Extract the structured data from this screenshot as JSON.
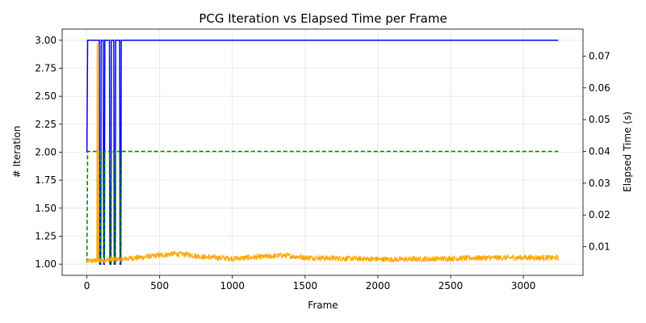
{
  "chart_data": {
    "type": "line",
    "title": "PCG Iteration vs Elapsed Time per Frame",
    "xlabel": "Frame",
    "ylabel": "# Iteration",
    "y2label": "Elapsed Time (s)",
    "xlim": [
      -170,
      3410
    ],
    "ylim": [
      0.9,
      3.1
    ],
    "y2lim": [
      0.001,
      0.0785
    ],
    "xticks": [
      0,
      500,
      1000,
      1500,
      2000,
      2500,
      3000
    ],
    "xtick_labels": [
      "0",
      "500",
      "1000",
      "1500",
      "2000",
      "2500",
      "3000"
    ],
    "yticks": [
      1.0,
      1.25,
      1.5,
      1.75,
      2.0,
      2.25,
      2.5,
      2.75,
      3.0
    ],
    "ytick_labels": [
      "1.00",
      "1.25",
      "1.50",
      "1.75",
      "2.00",
      "2.25",
      "2.50",
      "2.75",
      "3.00"
    ],
    "y2ticks": [
      0.01,
      0.02,
      0.03,
      0.04,
      0.05,
      0.06,
      0.07
    ],
    "y2tick_labels": [
      "0.01",
      "0.02",
      "0.03",
      "0.04",
      "0.05",
      "0.06",
      "0.07"
    ],
    "grid": true,
    "series": [
      {
        "color": "#0000ff",
        "style": "solid",
        "axis": "left",
        "steps": [
          [
            0,
            2
          ],
          [
            5,
            3
          ],
          [
            85,
            3
          ],
          [
            88,
            1
          ],
          [
            95,
            1
          ],
          [
            98,
            3
          ],
          [
            112,
            3
          ],
          [
            115,
            1
          ],
          [
            120,
            1
          ],
          [
            123,
            3
          ],
          [
            155,
            3
          ],
          [
            158,
            1
          ],
          [
            165,
            1
          ],
          [
            168,
            3
          ],
          [
            185,
            3
          ],
          [
            188,
            1
          ],
          [
            195,
            1
          ],
          [
            198,
            3
          ],
          [
            225,
            3
          ],
          [
            228,
            1
          ],
          [
            233,
            1
          ],
          [
            236,
            3
          ],
          [
            3240,
            3
          ]
        ]
      },
      {
        "color": "#008000",
        "style": "dashed",
        "axis": "right",
        "steps": [
          [
            0,
            0.005
          ],
          [
            5,
            0.04
          ],
          [
            85,
            0.04
          ],
          [
            88,
            0.005
          ],
          [
            95,
            0.005
          ],
          [
            98,
            0.04
          ],
          [
            112,
            0.04
          ],
          [
            115,
            0.005
          ],
          [
            120,
            0.005
          ],
          [
            123,
            0.04
          ],
          [
            155,
            0.04
          ],
          [
            158,
            0.005
          ],
          [
            165,
            0.005
          ],
          [
            168,
            0.04
          ],
          [
            185,
            0.04
          ],
          [
            188,
            0.005
          ],
          [
            195,
            0.005
          ],
          [
            198,
            0.04
          ],
          [
            225,
            0.04
          ],
          [
            228,
            0.005
          ],
          [
            233,
            0.005
          ],
          [
            236,
            0.04
          ],
          [
            3240,
            0.04
          ]
        ]
      },
      {
        "color": "#ffa500",
        "style": "solid",
        "axis": "right",
        "spikes": [
          [
            70,
            0.074
          ],
          [
            80,
            0.074
          ]
        ],
        "trend": [
          [
            0,
            0.0055
          ],
          [
            200,
            0.006
          ],
          [
            400,
            0.0068
          ],
          [
            600,
            0.0078
          ],
          [
            700,
            0.0075
          ],
          [
            800,
            0.0068
          ],
          [
            1000,
            0.0063
          ],
          [
            1200,
            0.0068
          ],
          [
            1350,
            0.0073
          ],
          [
            1500,
            0.0066
          ],
          [
            1800,
            0.0063
          ],
          [
            2100,
            0.006
          ],
          [
            2400,
            0.0062
          ],
          [
            2700,
            0.0065
          ],
          [
            3000,
            0.0066
          ],
          [
            3240,
            0.0065
          ]
        ],
        "noise": 0.0009
      }
    ]
  }
}
